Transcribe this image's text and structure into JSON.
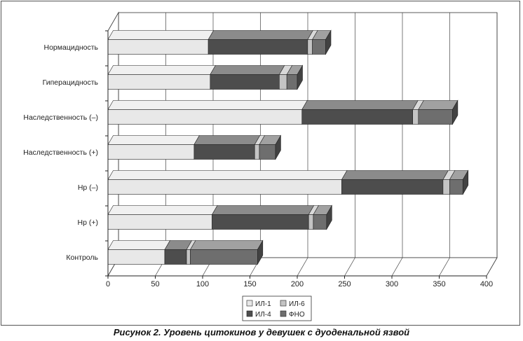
{
  "caption": "Рисунок 2. Уровень цитокинов у девушек с дуоденальной язвой",
  "chart_data": {
    "type": "bar",
    "orientation": "horizontal",
    "stacked": true,
    "three_d": true,
    "categories": [
      "Нормацидность",
      "Гиперацидность",
      "Наследственность (–)",
      "Наследственность (+)",
      "Hp (–)",
      "Hp (+)",
      "Контроль"
    ],
    "series": [
      {
        "name": "ИЛ-1",
        "color": "#e8e8e8",
        "values": [
          106,
          108,
          205,
          91,
          247,
          110,
          60
        ]
      },
      {
        "name": "ИЛ-4",
        "color": "#4d4d4d",
        "values": [
          105,
          73,
          117,
          64,
          107,
          102,
          23
        ]
      },
      {
        "name": "ИЛ-6",
        "color": "#c4c4c4",
        "values": [
          5,
          8,
          6,
          5,
          7,
          5,
          4
        ]
      },
      {
        "name": "ФНО",
        "color": "#6e6e6e",
        "values": [
          14,
          11,
          36,
          17,
          14,
          14,
          71
        ]
      }
    ],
    "xlim": [
      0,
      400
    ],
    "xticks": [
      "0",
      "50",
      "100",
      "150",
      "200",
      "250",
      "300",
      "350",
      "400"
    ],
    "grid": "vertical",
    "legend": {
      "position": "bottom-center",
      "columns": 2,
      "order": [
        "ИЛ-1",
        "ИЛ-6",
        "ИЛ-4",
        "ФНО"
      ]
    },
    "title": "",
    "xlabel": "",
    "ylabel": ""
  }
}
